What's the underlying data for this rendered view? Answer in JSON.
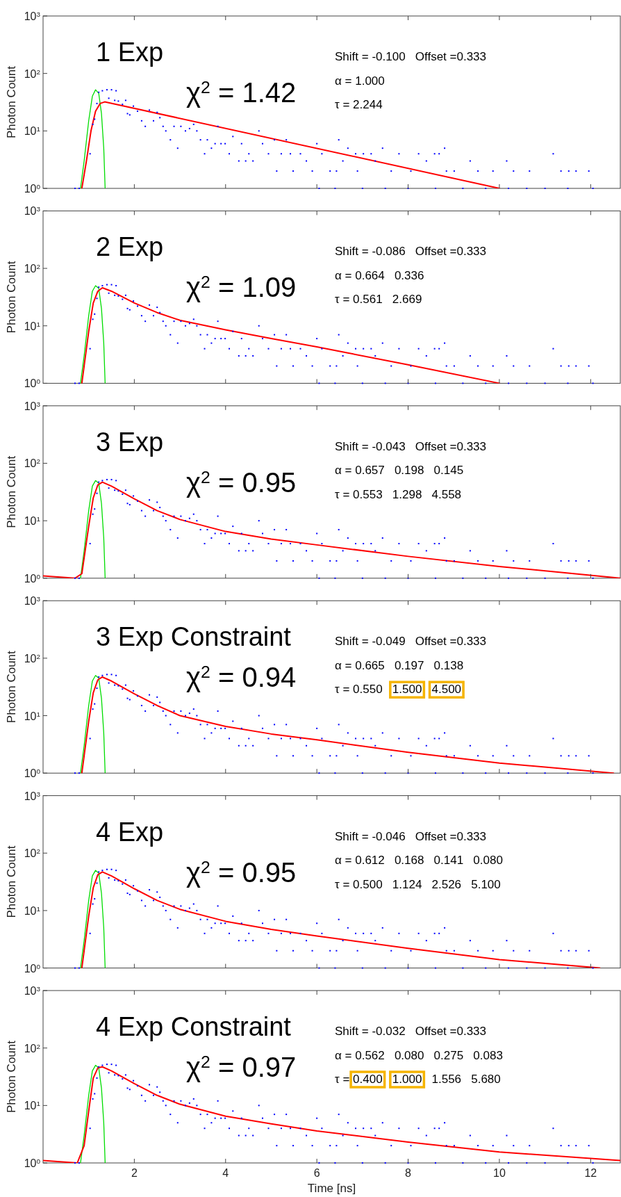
{
  "chart_data": [
    {
      "type": "scatter",
      "title": "1 Exp",
      "ylabel": "Photon Count",
      "xlim": [
        0,
        12.65
      ],
      "ylim": [
        1,
        1000
      ],
      "log": "y",
      "grid": false,
      "tick_labels": "y",
      "xticks": [
        2,
        4,
        6,
        8,
        10,
        12
      ],
      "yticks": [
        {
          "value": 1,
          "label": "10$^{0}$"
        },
        {
          "value": 10,
          "label": "10$^{1}$"
        },
        {
          "value": 100,
          "label": "10$^{2}$"
        },
        {
          "value": 1000,
          "label": "10$^{3}$"
        }
      ],
      "annotations": [
        "χ$^{2}$ = 1.42",
        "Shift = -0.100   Offset =0.333",
        "α = 1.000",
        "τ = 2.244"
      ],
      "series": [
        {
          "type": "scatter",
          "marker": "square",
          "color": "#0000ff",
          "x": [
            0.7,
            0.79,
            1.03,
            1.09,
            1.13,
            1.18,
            1.22,
            1.3,
            1.4,
            1.44,
            1.5,
            1.57,
            1.6,
            1.65,
            1.74,
            1.81,
            1.85,
            1.9,
            1.98,
            2.07,
            2.16,
            2.24,
            2.33,
            2.42,
            2.5,
            2.56,
            2.63,
            2.69,
            2.79,
            2.87,
            2.95,
            3.02,
            3.12,
            3.21,
            3.3,
            3.37,
            3.45,
            3.54,
            3.6,
            3.69,
            3.77,
            3.83,
            3.9,
            3.99,
            4.08,
            4.16,
            4.29,
            4.35,
            4.44,
            4.51,
            4.6,
            4.73,
            4.81,
            4.94,
            5.07,
            5.12,
            5.22,
            5.33,
            5.42,
            5.48,
            5.64,
            5.77,
            5.9,
            6.0,
            6.05,
            6.11,
            6.29,
            6.4,
            6.43,
            6.48,
            6.57,
            6.68,
            6.85,
            6.89,
            7.0,
            7.02,
            7.19,
            7.28,
            7.44,
            7.5,
            7.63,
            7.8,
            8.0,
            8.06,
            8.23,
            8.4,
            8.58,
            8.6,
            8.68,
            8.8,
            8.84,
            9.01,
            9.2,
            9.36,
            9.53,
            9.7,
            9.86,
            10.16,
            10.2,
            10.31,
            10.6,
            10.66,
            11.0,
            11.18,
            11.35,
            11.5,
            11.52,
            11.68,
            11.96,
            12.05
          ],
          "values": [
            1,
            1,
            4,
            13,
            16,
            30,
            47,
            50,
            52,
            37,
            52,
            34,
            50,
            33,
            29,
            34,
            20,
            19,
            27,
            22,
            15,
            12,
            23,
            15,
            21,
            17,
            12,
            10,
            7,
            12,
            5,
            12,
            10,
            11,
            13,
            10,
            7,
            4,
            7,
            5,
            6,
            12,
            6,
            6,
            4,
            8,
            3,
            6,
            3,
            4,
            3,
            10,
            6,
            4,
            7,
            2,
            4,
            7,
            4,
            2,
            4,
            3,
            2,
            6,
            1,
            4,
            2,
            1,
            2,
            7,
            3,
            5,
            4,
            2,
            1,
            4,
            4,
            3,
            5,
            1,
            2,
            4,
            1,
            2,
            4,
            3,
            4,
            1,
            4,
            5,
            2,
            2,
            1,
            3,
            2,
            1,
            2,
            3,
            1,
            2,
            1,
            2,
            1,
            4,
            2,
            1,
            2,
            2,
            2,
            1
          ]
        },
        {
          "type": "line",
          "color": "#00dd00",
          "x": [
            0.82,
            0.9,
            1.0,
            1.08,
            1.15,
            1.22,
            1.28,
            1.33,
            1.36
          ],
          "values": [
            1,
            3,
            15,
            40,
            52,
            45,
            20,
            5,
            1
          ]
        },
        {
          "type": "line",
          "color": "#ff0000",
          "x": [
            0.85,
            0.95,
            1.05,
            1.15,
            1.25,
            1.35,
            10.0
          ],
          "values": [
            1,
            3,
            10,
            22,
            30,
            32,
            1
          ]
        }
      ]
    },
    {
      "type": "scatter",
      "title": "2 Exp",
      "ylabel": "Photon Count",
      "xlim": [
        0,
        12.65
      ],
      "ylim": [
        1,
        1000
      ],
      "log": "y",
      "grid": false,
      "tick_labels": "y",
      "xticks": [
        2,
        4,
        6,
        8,
        10,
        12
      ],
      "yticks": [
        {
          "value": 1,
          "label": "10$^{0}$"
        },
        {
          "value": 10,
          "label": "10$^{1}$"
        },
        {
          "value": 100,
          "label": "10$^{2}$"
        },
        {
          "value": 1000,
          "label": "10$^{3}$"
        }
      ],
      "annotations": [
        "χ$^{2}$ = 1.09",
        "Shift = -0.086   Offset =0.333",
        "α = 0.664   0.336",
        "τ = 0.561   2.669"
      ],
      "series": [
        {
          "type": "scatter",
          "marker": "square",
          "color": "#0000ff",
          "x": [
            0.7,
            0.79,
            1.03,
            1.09,
            1.13,
            1.18,
            1.22,
            1.3,
            1.4,
            1.44,
            1.5,
            1.57,
            1.6,
            1.65,
            1.74,
            1.81,
            1.85,
            1.9,
            1.98,
            2.07,
            2.16,
            2.24,
            2.33,
            2.42,
            2.5,
            2.56,
            2.63,
            2.69,
            2.79,
            2.87,
            2.95,
            3.02,
            3.12,
            3.21,
            3.3,
            3.37,
            3.45,
            3.54,
            3.6,
            3.69,
            3.77,
            3.83,
            3.9,
            3.99,
            4.08,
            4.16,
            4.29,
            4.35,
            4.44,
            4.51,
            4.6,
            4.73,
            4.81,
            4.94,
            5.07,
            5.12,
            5.22,
            5.33,
            5.42,
            5.48,
            5.64,
            5.77,
            5.9,
            6.0,
            6.05,
            6.11,
            6.29,
            6.4,
            6.43,
            6.48,
            6.57,
            6.68,
            6.85,
            6.89,
            7.0,
            7.02,
            7.19,
            7.28,
            7.44,
            7.5,
            7.63,
            7.8,
            8.0,
            8.06,
            8.23,
            8.4,
            8.58,
            8.6,
            8.68,
            8.8,
            8.84,
            9.01,
            9.2,
            9.36,
            9.53,
            9.7,
            9.86,
            10.16,
            10.2,
            10.31,
            10.6,
            10.66,
            11.0,
            11.18,
            11.35,
            11.5,
            11.52,
            11.68,
            11.96,
            12.05
          ],
          "values": [
            1,
            1,
            4,
            13,
            16,
            30,
            47,
            50,
            52,
            37,
            52,
            34,
            50,
            33,
            29,
            34,
            20,
            19,
            27,
            22,
            15,
            12,
            23,
            15,
            21,
            17,
            12,
            10,
            7,
            12,
            5,
            12,
            10,
            11,
            13,
            10,
            7,
            4,
            7,
            5,
            6,
            12,
            6,
            6,
            4,
            8,
            3,
            6,
            3,
            4,
            3,
            10,
            6,
            4,
            7,
            2,
            4,
            7,
            4,
            2,
            4,
            3,
            2,
            6,
            1,
            4,
            2,
            1,
            2,
            7,
            3,
            5,
            4,
            2,
            1,
            4,
            4,
            3,
            5,
            1,
            2,
            4,
            1,
            2,
            4,
            3,
            4,
            1,
            4,
            5,
            2,
            2,
            1,
            3,
            2,
            1,
            2,
            3,
            1,
            2,
            1,
            2,
            1,
            4,
            2,
            1,
            2,
            2,
            2,
            1
          ]
        },
        {
          "type": "line",
          "color": "#00dd00",
          "x": [
            0.82,
            0.9,
            1.0,
            1.08,
            1.15,
            1.22,
            1.28,
            1.33,
            1.36
          ],
          "values": [
            1,
            3,
            15,
            40,
            50,
            45,
            20,
            5,
            1
          ]
        },
        {
          "type": "line",
          "color": "#ff0000",
          "x": [
            0.85,
            1.0,
            1.1,
            1.2,
            1.3,
            1.5,
            2,
            2.5,
            3,
            4,
            5,
            6,
            8,
            10
          ],
          "values": [
            1,
            8,
            25,
            40,
            46,
            40,
            25,
            17,
            12.5,
            8.5,
            6,
            4.3,
            2.1,
            1
          ]
        }
      ]
    },
    {
      "type": "scatter",
      "title": "3 Exp",
      "ylabel": "Photon Count",
      "xlim": [
        0,
        12.65
      ],
      "ylim": [
        1,
        1000
      ],
      "log": "y",
      "grid": false,
      "tick_labels": "y",
      "xticks": [
        2,
        4,
        6,
        8,
        10,
        12
      ],
      "yticks": [
        {
          "value": 1,
          "label": "10$^{0}$"
        },
        {
          "value": 10,
          "label": "10$^{1}$"
        },
        {
          "value": 100,
          "label": "10$^{2}$"
        },
        {
          "value": 1000,
          "label": "10$^{3}$"
        }
      ],
      "annotations": [
        "χ$^{2}$ = 0.95",
        "Shift = -0.043   Offset =0.333",
        "α = 0.657   0.198   0.145",
        "τ = 0.553   1.298   4.558"
      ],
      "series": [
        {
          "type": "scatter",
          "marker": "square",
          "color": "#0000ff",
          "x": [
            0.7,
            0.79,
            1.03,
            1.09,
            1.13,
            1.18,
            1.22,
            1.3,
            1.4,
            1.44,
            1.5,
            1.57,
            1.6,
            1.65,
            1.74,
            1.81,
            1.85,
            1.9,
            1.98,
            2.07,
            2.16,
            2.24,
            2.33,
            2.42,
            2.5,
            2.56,
            2.63,
            2.69,
            2.79,
            2.87,
            2.95,
            3.02,
            3.12,
            3.21,
            3.3,
            3.37,
            3.45,
            3.54,
            3.6,
            3.69,
            3.77,
            3.83,
            3.9,
            3.99,
            4.08,
            4.16,
            4.29,
            4.35,
            4.44,
            4.51,
            4.6,
            4.73,
            4.81,
            4.94,
            5.07,
            5.12,
            5.22,
            5.33,
            5.42,
            5.48,
            5.64,
            5.77,
            5.9,
            6.0,
            6.05,
            6.11,
            6.29,
            6.4,
            6.43,
            6.48,
            6.57,
            6.68,
            6.85,
            6.89,
            7.0,
            7.02,
            7.19,
            7.28,
            7.44,
            7.5,
            7.63,
            7.8,
            8.0,
            8.06,
            8.23,
            8.4,
            8.58,
            8.6,
            8.68,
            8.8,
            8.84,
            9.01,
            9.2,
            9.36,
            9.53,
            9.7,
            9.86,
            10.16,
            10.2,
            10.31,
            10.6,
            10.66,
            11.0,
            11.18,
            11.35,
            11.5,
            11.52,
            11.68,
            11.96,
            12.05
          ],
          "values": [
            1,
            1,
            4,
            13,
            16,
            30,
            47,
            50,
            52,
            37,
            52,
            34,
            50,
            33,
            29,
            34,
            20,
            19,
            27,
            22,
            15,
            12,
            23,
            15,
            21,
            17,
            12,
            10,
            7,
            12,
            5,
            12,
            10,
            11,
            13,
            10,
            7,
            4,
            7,
            5,
            6,
            12,
            6,
            6,
            4,
            8,
            3,
            6,
            3,
            4,
            3,
            10,
            6,
            4,
            7,
            2,
            4,
            7,
            4,
            2,
            4,
            3,
            2,
            6,
            1,
            4,
            2,
            1,
            2,
            7,
            3,
            5,
            4,
            2,
            1,
            4,
            4,
            3,
            5,
            1,
            2,
            4,
            1,
            2,
            4,
            3,
            4,
            1,
            4,
            5,
            2,
            2,
            1,
            3,
            2,
            1,
            2,
            3,
            1,
            2,
            1,
            2,
            1,
            4,
            2,
            1,
            2,
            2,
            2,
            1
          ]
        },
        {
          "type": "line",
          "color": "#00dd00",
          "x": [
            0.82,
            0.9,
            1.0,
            1.08,
            1.15,
            1.22,
            1.28,
            1.33,
            1.36
          ],
          "values": [
            1,
            3,
            15,
            40,
            50,
            45,
            20,
            5,
            1
          ]
        },
        {
          "type": "line",
          "color": "#ff0000",
          "x": [
            0,
            0.7,
            0.85,
            1.0,
            1.1,
            1.2,
            1.3,
            1.5,
            2,
            2.5,
            3,
            4,
            5,
            6,
            8,
            10,
            12.65
          ],
          "values": [
            1.1,
            1,
            1.2,
            8,
            25,
            42,
            47,
            40,
            24,
            15,
            10.5,
            6.5,
            4.8,
            3.8,
            2.4,
            1.6,
            1
          ]
        }
      ]
    },
    {
      "type": "scatter",
      "title": "3 Exp Constraint",
      "ylabel": "Photon Count",
      "xlim": [
        0,
        12.65
      ],
      "ylim": [
        1,
        1000
      ],
      "log": "y",
      "grid": false,
      "tick_labels": "y",
      "xticks": [
        2,
        4,
        6,
        8,
        10,
        12
      ],
      "yticks": [
        {
          "value": 1,
          "label": "10$^{0}$"
        },
        {
          "value": 10,
          "label": "10$^{1}$"
        },
        {
          "value": 100,
          "label": "10$^{2}$"
        },
        {
          "value": 1000,
          "label": "10$^{3}$"
        }
      ],
      "annotations": [
        "χ$^{2}$ = 0.94",
        "Shift = -0.049   Offset =0.333",
        "α = 0.665   0.197   0.138",
        "τ = 0.550   1.500   4.500"
      ],
      "series": [
        {
          "type": "scatter",
          "marker": "square",
          "color": "#0000ff",
          "x": [
            0.7,
            0.79,
            1.03,
            1.09,
            1.13,
            1.18,
            1.22,
            1.3,
            1.4,
            1.44,
            1.5,
            1.57,
            1.6,
            1.65,
            1.74,
            1.81,
            1.85,
            1.9,
            1.98,
            2.07,
            2.16,
            2.24,
            2.33,
            2.42,
            2.5,
            2.56,
            2.63,
            2.69,
            2.79,
            2.87,
            2.95,
            3.02,
            3.12,
            3.21,
            3.3,
            3.37,
            3.45,
            3.54,
            3.6,
            3.69,
            3.77,
            3.83,
            3.9,
            3.99,
            4.08,
            4.16,
            4.29,
            4.35,
            4.44,
            4.51,
            4.6,
            4.73,
            4.81,
            4.94,
            5.07,
            5.12,
            5.22,
            5.33,
            5.42,
            5.48,
            5.64,
            5.77,
            5.9,
            6.0,
            6.05,
            6.11,
            6.29,
            6.4,
            6.43,
            6.48,
            6.57,
            6.68,
            6.85,
            6.89,
            7.0,
            7.02,
            7.19,
            7.28,
            7.44,
            7.5,
            7.63,
            7.8,
            8.0,
            8.06,
            8.23,
            8.4,
            8.58,
            8.6,
            8.68,
            8.8,
            8.84,
            9.01,
            9.2,
            9.36,
            9.53,
            9.7,
            9.86,
            10.16,
            10.2,
            10.31,
            10.6,
            10.66,
            11.0,
            11.18,
            11.35,
            11.5,
            11.52,
            11.68,
            11.96,
            12.05
          ],
          "values": [
            1,
            1,
            4,
            13,
            16,
            30,
            47,
            50,
            52,
            37,
            52,
            34,
            50,
            33,
            29,
            34,
            20,
            19,
            27,
            22,
            15,
            12,
            23,
            15,
            21,
            17,
            12,
            10,
            7,
            12,
            5,
            12,
            10,
            11,
            13,
            10,
            7,
            4,
            7,
            5,
            6,
            12,
            6,
            6,
            4,
            8,
            3,
            6,
            3,
            4,
            3,
            10,
            6,
            4,
            7,
            2,
            4,
            7,
            4,
            2,
            4,
            3,
            2,
            6,
            1,
            4,
            2,
            1,
            2,
            7,
            3,
            5,
            4,
            2,
            1,
            4,
            4,
            3,
            5,
            1,
            2,
            4,
            1,
            2,
            4,
            3,
            4,
            1,
            4,
            5,
            2,
            2,
            1,
            3,
            2,
            1,
            2,
            3,
            1,
            2,
            1,
            2,
            1,
            4,
            2,
            1,
            2,
            2,
            2,
            1
          ]
        },
        {
          "type": "line",
          "color": "#00dd00",
          "x": [
            0.82,
            0.9,
            1.0,
            1.08,
            1.15,
            1.22,
            1.28,
            1.33,
            1.36
          ],
          "values": [
            1,
            3,
            15,
            40,
            50,
            45,
            20,
            5,
            1
          ]
        },
        {
          "type": "line",
          "color": "#ff0000",
          "x": [
            0.85,
            1.0,
            1.1,
            1.2,
            1.3,
            1.5,
            2,
            2.5,
            3,
            4,
            5,
            6,
            8,
            10,
            12.5
          ],
          "values": [
            1,
            8,
            25,
            42,
            47,
            40,
            24,
            15,
            10,
            6.5,
            4.8,
            3.8,
            2.3,
            1.5,
            1
          ]
        }
      ]
    },
    {
      "type": "scatter",
      "title": "4 Exp",
      "ylabel": "Photon Count",
      "xlim": [
        0,
        12.65
      ],
      "ylim": [
        1,
        1000
      ],
      "log": "y",
      "grid": false,
      "tick_labels": "y",
      "xticks": [
        2,
        4,
        6,
        8,
        10,
        12
      ],
      "yticks": [
        {
          "value": 1,
          "label": "10$^{0}$"
        },
        {
          "value": 10,
          "label": "10$^{1}$"
        },
        {
          "value": 100,
          "label": "10$^{2}$"
        },
        {
          "value": 1000,
          "label": "10$^{3}$"
        }
      ],
      "annotations": [
        "χ$^{2}$ = 0.95",
        "Shift = -0.046   Offset =0.333",
        "α = 0.612   0.168   0.141   0.080",
        "τ = 0.500   1.124   2.526   5.100"
      ],
      "series": [
        {
          "type": "scatter",
          "marker": "square",
          "color": "#0000ff",
          "x": [
            0.7,
            0.79,
            1.03,
            1.09,
            1.13,
            1.18,
            1.22,
            1.3,
            1.4,
            1.44,
            1.5,
            1.57,
            1.6,
            1.65,
            1.74,
            1.81,
            1.85,
            1.9,
            1.98,
            2.07,
            2.16,
            2.24,
            2.33,
            2.42,
            2.5,
            2.56,
            2.63,
            2.69,
            2.79,
            2.87,
            2.95,
            3.02,
            3.12,
            3.21,
            3.3,
            3.37,
            3.45,
            3.54,
            3.6,
            3.69,
            3.77,
            3.83,
            3.9,
            3.99,
            4.08,
            4.16,
            4.29,
            4.35,
            4.44,
            4.51,
            4.6,
            4.73,
            4.81,
            4.94,
            5.07,
            5.12,
            5.22,
            5.33,
            5.42,
            5.48,
            5.64,
            5.77,
            5.9,
            6.0,
            6.05,
            6.11,
            6.29,
            6.4,
            6.43,
            6.48,
            6.57,
            6.68,
            6.85,
            6.89,
            7.0,
            7.02,
            7.19,
            7.28,
            7.44,
            7.5,
            7.63,
            7.8,
            8.0,
            8.06,
            8.23,
            8.4,
            8.58,
            8.6,
            8.68,
            8.8,
            8.84,
            9.01,
            9.2,
            9.36,
            9.53,
            9.7,
            9.86,
            10.16,
            10.2,
            10.31,
            10.6,
            10.66,
            11.0,
            11.18,
            11.35,
            11.5,
            11.52,
            11.68,
            11.96,
            12.05
          ],
          "values": [
            1,
            1,
            4,
            13,
            16,
            30,
            47,
            50,
            52,
            37,
            52,
            34,
            50,
            33,
            29,
            34,
            20,
            19,
            27,
            22,
            15,
            12,
            23,
            15,
            21,
            17,
            12,
            10,
            7,
            12,
            5,
            12,
            10,
            11,
            13,
            10,
            7,
            4,
            7,
            5,
            6,
            12,
            6,
            6,
            4,
            8,
            3,
            6,
            3,
            4,
            3,
            10,
            6,
            4,
            7,
            2,
            4,
            7,
            4,
            2,
            4,
            3,
            2,
            6,
            1,
            4,
            2,
            1,
            2,
            7,
            3,
            5,
            4,
            2,
            1,
            4,
            4,
            3,
            5,
            1,
            2,
            4,
            1,
            2,
            4,
            3,
            4,
            1,
            4,
            5,
            2,
            2,
            1,
            3,
            2,
            1,
            2,
            3,
            1,
            2,
            1,
            2,
            1,
            4,
            2,
            1,
            2,
            2,
            2,
            1
          ]
        },
        {
          "type": "line",
          "color": "#00dd00",
          "x": [
            0.82,
            0.9,
            1.0,
            1.08,
            1.15,
            1.22,
            1.28,
            1.33,
            1.36
          ],
          "values": [
            1,
            3,
            15,
            40,
            50,
            45,
            20,
            5,
            1
          ]
        },
        {
          "type": "line",
          "color": "#ff0000",
          "x": [
            0.85,
            1.0,
            1.1,
            1.2,
            1.3,
            1.5,
            2,
            2.5,
            3,
            4,
            5,
            6,
            8,
            10,
            12.2
          ],
          "values": [
            1,
            8,
            25,
            42,
            47,
            40,
            24,
            15,
            10.5,
            6.5,
            4.7,
            3.6,
            2.2,
            1.4,
            1
          ]
        }
      ]
    },
    {
      "type": "scatter",
      "title": "4 Exp Constraint",
      "xlabel": "Time [ns]",
      "ylabel": "Photon Count",
      "xlim": [
        0,
        12.65
      ],
      "ylim": [
        1,
        1000
      ],
      "log": "y",
      "grid": false,
      "xticks": [
        2,
        4,
        6,
        8,
        10,
        12
      ],
      "yticks": [
        {
          "value": 1,
          "label": "10$^{0}$"
        },
        {
          "value": 10,
          "label": "10$^{1}$"
        },
        {
          "value": 100,
          "label": "10$^{2}$"
        },
        {
          "value": 1000,
          "label": "10$^{3}$"
        }
      ],
      "annotations": [
        "χ$^{2}$ = 0.97",
        "Shift = -0.032   Offset =0.333",
        "α = 0.562   0.080   0.275   0.083",
        "τ = 0.400   1.000   1.556   5.680"
      ],
      "series": [
        {
          "type": "scatter",
          "marker": "square",
          "color": "#0000ff",
          "x": [
            0.7,
            0.79,
            1.03,
            1.09,
            1.13,
            1.18,
            1.22,
            1.3,
            1.4,
            1.44,
            1.5,
            1.57,
            1.6,
            1.65,
            1.74,
            1.81,
            1.85,
            1.9,
            1.98,
            2.07,
            2.16,
            2.24,
            2.33,
            2.42,
            2.5,
            2.56,
            2.63,
            2.69,
            2.79,
            2.87,
            2.95,
            3.02,
            3.12,
            3.21,
            3.3,
            3.37,
            3.45,
            3.54,
            3.6,
            3.69,
            3.77,
            3.83,
            3.9,
            3.99,
            4.08,
            4.16,
            4.29,
            4.35,
            4.44,
            4.51,
            4.6,
            4.73,
            4.81,
            4.94,
            5.07,
            5.12,
            5.22,
            5.33,
            5.42,
            5.48,
            5.64,
            5.77,
            5.9,
            6.0,
            6.05,
            6.11,
            6.29,
            6.4,
            6.43,
            6.48,
            6.57,
            6.68,
            6.85,
            6.89,
            7.0,
            7.02,
            7.19,
            7.28,
            7.44,
            7.5,
            7.63,
            7.8,
            8.0,
            8.06,
            8.23,
            8.4,
            8.58,
            8.6,
            8.68,
            8.8,
            8.84,
            9.01,
            9.2,
            9.36,
            9.53,
            9.7,
            9.86,
            10.16,
            10.2,
            10.31,
            10.6,
            10.66,
            11.0,
            11.18,
            11.35,
            11.5,
            11.52,
            11.68,
            11.96,
            12.05
          ],
          "values": [
            1,
            1,
            4,
            13,
            16,
            30,
            47,
            50,
            52,
            37,
            52,
            34,
            50,
            33,
            29,
            34,
            20,
            19,
            27,
            22,
            15,
            12,
            23,
            15,
            21,
            17,
            12,
            10,
            7,
            12,
            5,
            12,
            10,
            11,
            13,
            10,
            7,
            4,
            7,
            5,
            6,
            12,
            6,
            6,
            4,
            8,
            3,
            6,
            3,
            4,
            3,
            10,
            6,
            4,
            7,
            2,
            4,
            7,
            4,
            2,
            4,
            3,
            2,
            6,
            1,
            4,
            2,
            1,
            2,
            7,
            3,
            5,
            4,
            2,
            1,
            4,
            4,
            3,
            5,
            1,
            2,
            4,
            1,
            2,
            4,
            3,
            4,
            1,
            4,
            5,
            2,
            2,
            1,
            3,
            2,
            1,
            2,
            3,
            1,
            2,
            1,
            2,
            1,
            4,
            2,
            1,
            2,
            2,
            2,
            1
          ]
        },
        {
          "type": "line",
          "color": "#00dd00",
          "x": [
            0.82,
            0.9,
            1.0,
            1.08,
            1.15,
            1.22,
            1.28,
            1.33,
            1.36
          ],
          "values": [
            1,
            3,
            15,
            40,
            50,
            45,
            20,
            5,
            1
          ]
        },
        {
          "type": "line",
          "color": "#ff0000",
          "x": [
            0,
            0.75,
            0.9,
            1.0,
            1.1,
            1.2,
            1.3,
            1.5,
            2,
            2.5,
            3,
            4,
            5,
            6,
            8,
            10,
            12.65
          ],
          "values": [
            1.1,
            1,
            2,
            8,
            30,
            45,
            47,
            40,
            24,
            15,
            10.5,
            6.5,
            4.8,
            3.6,
            2.3,
            1.55,
            1.1
          ]
        }
      ]
    }
  ]
}
